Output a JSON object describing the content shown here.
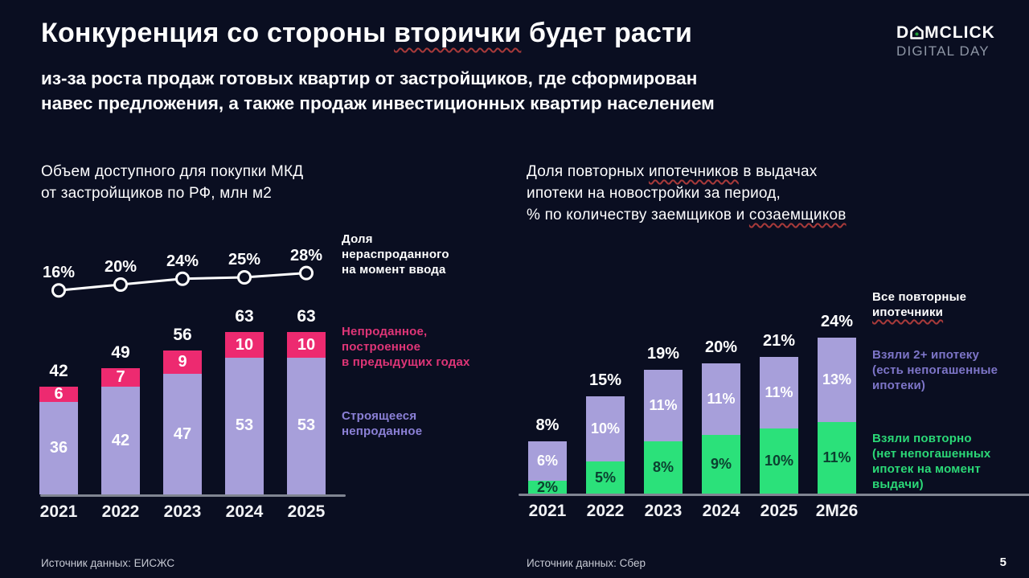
{
  "slide": {
    "title_pre": "Конкуренция со стороны ",
    "title_underlined": "вторички",
    "title_post": " будет расти",
    "subtitle_line1": "из-за роста продаж готовых квартир от застройщиков, где сформирован",
    "subtitle_line2": "навес предложения, а также продаж инвестиционных квартир населением",
    "page_number": "5"
  },
  "logo": {
    "brand_pre": "D",
    "brand_post": "MCLICK",
    "event": "DIGITAL DAY"
  },
  "left_section": {
    "title_line1": "Объем доступного для покупки МКД",
    "title_line2": "от застройщиков по РФ, млн м2",
    "legend_line": "Доля\nнераспроданного\nна момент ввода",
    "legend_pink": "Непроданное,\nпостроенное\nв предыдущих годах",
    "legend_lavender": "Строящееся\nнепроданное",
    "source": "Источник данных: ЕИСЖС"
  },
  "right_section": {
    "title_p1": "Доля повторных ",
    "title_u1": "ипотечников",
    "title_p2": " в выдачах",
    "title_line2": "ипотеки на новостройки за период,",
    "title_p3": "% по количеству заемщиков и ",
    "title_u2": "созаемщиков",
    "legend_all_line1": "Все повторные",
    "legend_all_line2": "ипотечники",
    "legend_purple_bold": "Взяли 2+ ипотеку",
    "legend_purple_rest": "(есть непогашенные\nипотеки)",
    "legend_green_bold": "Взяли повторно",
    "legend_green_rest": "(нет непогашенных\nипотек на момент\nвыдачи)",
    "source": "Источник данных: Сбер"
  },
  "colors": {
    "background": "#0a0e21",
    "lavender": "#a79fda",
    "pink": "#ed2a70",
    "green": "#2be17a",
    "green_dark_text": "#0b4030",
    "white": "#ffffff",
    "legend_pink_text": "#df3577",
    "legend_lavender_text": "#8b80d6",
    "legend_green_text": "#2bd977",
    "underline_red": "#a83a3a",
    "logo_green": "#21a038",
    "axis_gray": "#808592"
  },
  "chart_data": [
    {
      "id": "supply",
      "type": "bar",
      "title": "Объем доступного для покупки МКД от застройщиков по РФ, млн м2",
      "categories": [
        "2021",
        "2022",
        "2023",
        "2024",
        "2025"
      ],
      "series": [
        {
          "name": "Строящееся непроданное",
          "values": [
            36,
            42,
            47,
            53,
            53
          ],
          "labels": [
            "36",
            "42",
            "47",
            "53",
            "53"
          ],
          "color_key": "lavender",
          "label_color_key": "white"
        },
        {
          "name": "Непроданное, построенное в предыдущих годах",
          "values": [
            6,
            7,
            9,
            10,
            10
          ],
          "labels": [
            "6",
            "7",
            "9",
            "10",
            "10"
          ],
          "color_key": "pink",
          "label_color_key": "white"
        }
      ],
      "totals_labels": [
        "42",
        "49",
        "56",
        "63",
        "63"
      ],
      "line": {
        "name": "Доля нераспроданного на момент ввода",
        "values_pct": [
          16,
          20,
          24,
          25,
          28
        ],
        "labels": [
          "16%",
          "20%",
          "24%",
          "25%",
          "28%"
        ]
      },
      "ylim": [
        0,
        70
      ],
      "legend_position": "right",
      "source": "Источник данных: ЕИСЖС"
    },
    {
      "id": "repeat-mortgage",
      "type": "bar",
      "title": "Доля повторных ипотечников в выдачах ипотеки на новостройки за период, % по количеству заемщиков и созаемщиков",
      "categories": [
        "2021",
        "2022",
        "2023",
        "2024",
        "2025",
        "2М26"
      ],
      "series": [
        {
          "name": "Взяли повторно (нет непогашенных ипотек на момент выдачи)",
          "values": [
            2,
            5,
            8,
            9,
            10,
            11
          ],
          "labels": [
            "2%",
            "5%",
            "8%",
            "9%",
            "10%",
            "11%"
          ],
          "color_key": "green",
          "label_color_key": "green_dark_text"
        },
        {
          "name": "Взяли 2+ ипотеку (есть непогашенные ипотеки)",
          "values": [
            6,
            10,
            11,
            11,
            11,
            13
          ],
          "labels": [
            "6%",
            "10%",
            "11%",
            "11%",
            "11%",
            "13%"
          ],
          "color_key": "lavender",
          "label_color_key": "white"
        }
      ],
      "totals_labels": [
        "8%",
        "15%",
        "19%",
        "20%",
        "21%",
        "24%"
      ],
      "ylim": [
        0,
        30
      ],
      "legend_position": "right",
      "source": "Источник данных: Сбер"
    }
  ]
}
